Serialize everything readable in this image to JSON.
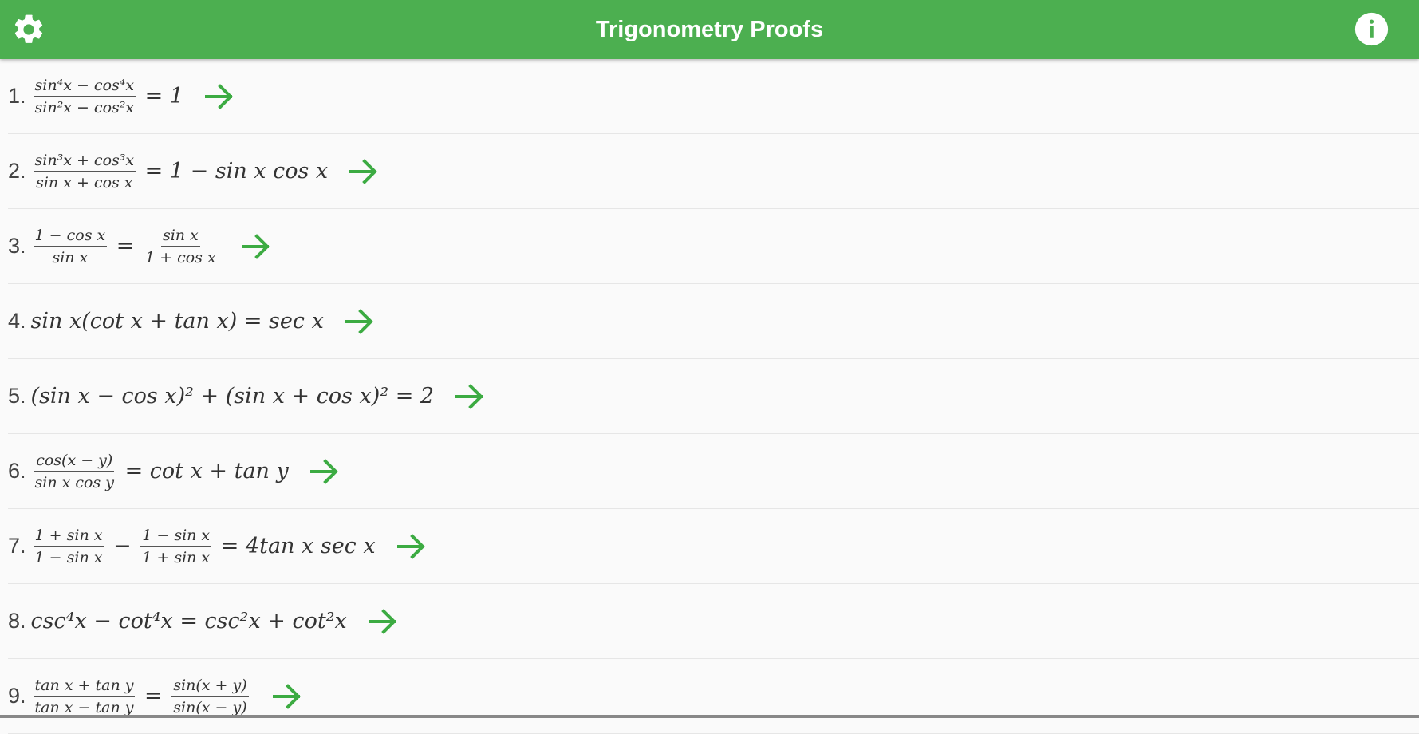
{
  "header": {
    "title": "Trigonometry Proofs",
    "settings_icon": "gear-icon",
    "info_icon": "info-icon",
    "color": "#4caf50"
  },
  "accent_color": "#3cab42",
  "proofs": [
    {
      "number": "1.",
      "parts": [
        {
          "num": "sin⁴x − cos⁴x",
          "den": "sin²x − cos²x"
        },
        {
          "text": " = 1"
        }
      ]
    },
    {
      "number": "2.",
      "parts": [
        {
          "num": "sin³x + cos³x",
          "den": "sin x + cos x"
        },
        {
          "text": " = 1 − sin x cos x"
        }
      ]
    },
    {
      "number": "3.",
      "parts": [
        {
          "num": "1 − cos x",
          "den": "sin x"
        },
        {
          "text": " = "
        },
        {
          "num": "sin x",
          "den": "1 + cos x"
        }
      ]
    },
    {
      "number": "4.",
      "parts": [
        {
          "text": "sin x(cot x + tan x) = sec x"
        }
      ]
    },
    {
      "number": "5.",
      "parts": [
        {
          "text": "(sin x − cos x)² + (sin x + cos x)² = 2"
        }
      ]
    },
    {
      "number": "6.",
      "parts": [
        {
          "num": "cos(x − y)",
          "den": "sin x cos y"
        },
        {
          "text": " = cot x + tan y"
        }
      ]
    },
    {
      "number": "7.",
      "parts": [
        {
          "num": "1 + sin x",
          "den": "1 − sin x"
        },
        {
          "text": " − "
        },
        {
          "num": "1 − sin x",
          "den": "1 + sin x"
        },
        {
          "text": " = 4tan x sec x"
        }
      ]
    },
    {
      "number": "8.",
      "parts": [
        {
          "text": "csc⁴x − cot⁴x = csc²x + cot²x"
        }
      ]
    },
    {
      "number": "9.",
      "parts": [
        {
          "num": "tan x + tan y",
          "den": "tan x − tan y"
        },
        {
          "text": " = "
        },
        {
          "num": "sin(x + y)",
          "den": "sin(x − y)"
        }
      ]
    }
  ]
}
